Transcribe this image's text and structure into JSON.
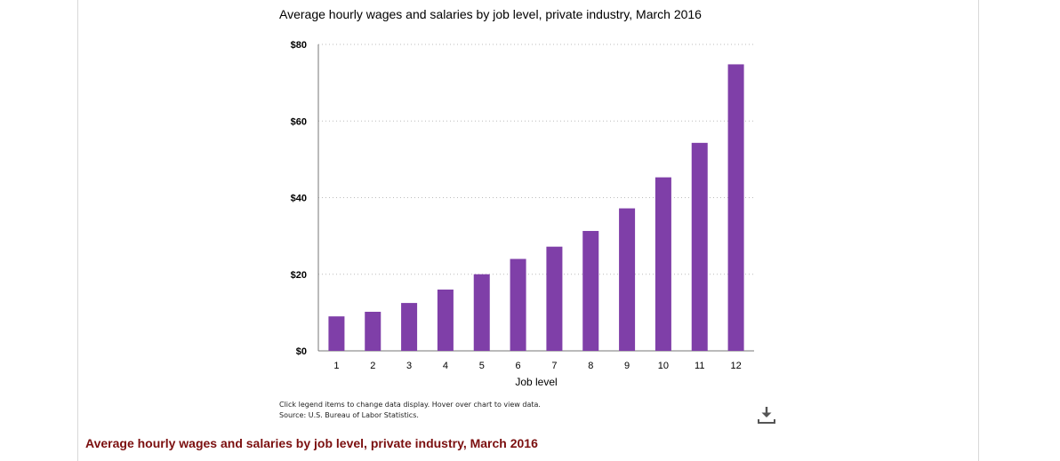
{
  "chart": {
    "notes": {
      "interaction": "Click legend items to change data display. Hover over chart to view data.",
      "source": "Source: U.S. Bureau of Labor Statistics."
    },
    "download_icon": "download-icon"
  },
  "below_title": "Average hourly wages and salaries by job level, private industry, March 2016",
  "chart_data": {
    "type": "bar",
    "title": "Average hourly wages and salaries by job level, private industry, March 2016",
    "xlabel": "Job level",
    "ylabel": "",
    "categories": [
      "1",
      "2",
      "3",
      "4",
      "5",
      "6",
      "7",
      "8",
      "9",
      "10",
      "11",
      "12"
    ],
    "values": [
      9.0,
      10.2,
      12.5,
      16.0,
      20.0,
      24.0,
      27.2,
      31.3,
      37.2,
      45.3,
      54.3,
      74.8
    ],
    "ylim": [
      0,
      80
    ],
    "yticks": [
      0,
      20,
      40,
      60,
      80
    ],
    "ytick_labels": [
      "$0",
      "$20",
      "$40",
      "$60",
      "$80"
    ],
    "bar_color": "#7f3fa8",
    "grid": true,
    "legend": "none"
  }
}
